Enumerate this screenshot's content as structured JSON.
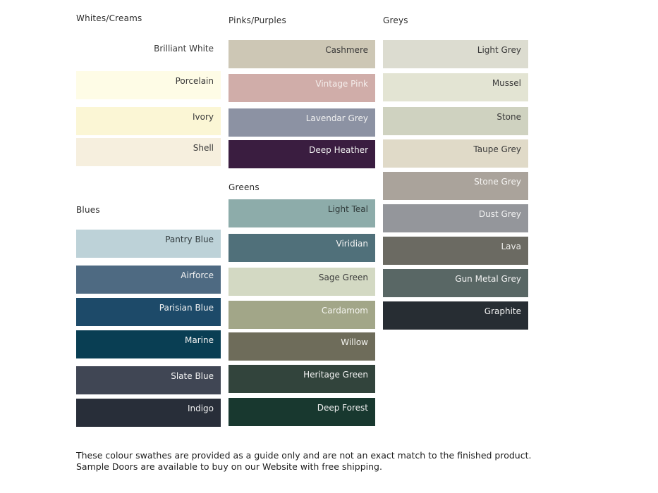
{
  "columns": [
    {
      "sections": [
        {
          "header": "Whites/Creams",
          "swatches": [
            {
              "label": "Brilliant White",
              "color": "#ffffff",
              "label_color": "#3a3a3a"
            },
            {
              "label": "Porcelain",
              "color": "#fefce6",
              "label_color": "#3a3a3a"
            },
            {
              "label": "Ivory",
              "color": "#fbf6d5",
              "label_color": "#3a3a3a"
            },
            {
              "label": "Shell",
              "color": "#f6efde",
              "label_color": "#3a3a3a"
            }
          ]
        },
        {
          "header": "Blues",
          "swatches": [
            {
              "label": "Pantry Blue",
              "color": "#bdd2d8",
              "label_color": "#333d40"
            },
            {
              "label": "Airforce",
              "color": "#4e6a82",
              "label_color": "#f2f2f2"
            },
            {
              "label": "Parisian Blue",
              "color": "#1d4a69",
              "label_color": "#f2f2f2"
            },
            {
              "label": "Marine",
              "color": "#093e53",
              "label_color": "#f2f2f2"
            },
            {
              "label": "Slate Blue",
              "color": "#404654",
              "label_color": "#f2f2f2"
            },
            {
              "label": "Indigo",
              "color": "#282e39",
              "label_color": "#f2f2f2"
            }
          ]
        }
      ]
    },
    {
      "sections": [
        {
          "header": "Pinks/Purples",
          "swatches": [
            {
              "label": "Cashmere",
              "color": "#cdc7b5",
              "label_color": "#3a3a3a"
            },
            {
              "label": "Vintage Pink",
              "color": "#d0ada9",
              "label_color": "#f5eeec"
            },
            {
              "label": "Lavendar Grey",
              "color": "#8c92a3",
              "label_color": "#f2f2f2"
            },
            {
              "label": "Deep Heather",
              "color": "#3a1d40",
              "label_color": "#f2f2f2"
            }
          ]
        },
        {
          "header": "Greens",
          "swatches": [
            {
              "label": "Light Teal",
              "color": "#8dacaa",
              "label_color": "#303a3a"
            },
            {
              "label": "Viridian",
              "color": "#50707a",
              "label_color": "#f2f2f2"
            },
            {
              "label": "Sage Green",
              "color": "#d3d9c3",
              "label_color": "#3a3a3a"
            },
            {
              "label": "Cardamom",
              "color": "#a2a688",
              "label_color": "#f5f5f0"
            },
            {
              "label": "Willow",
              "color": "#6e6c5a",
              "label_color": "#f2f2ee"
            },
            {
              "label": "Heritage Green",
              "color": "#32443c",
              "label_color": "#f2f2f2"
            },
            {
              "label": "Deep Forest",
              "color": "#18382f",
              "label_color": "#f2f2f2"
            }
          ]
        }
      ]
    },
    {
      "sections": [
        {
          "header": "Greys",
          "swatches": [
            {
              "label": "Light Grey",
              "color": "#dcdcd0",
              "label_color": "#3a3a3a"
            },
            {
              "label": "Mussel",
              "color": "#e3e4d3",
              "label_color": "#3a3a3a"
            },
            {
              "label": "Stone",
              "color": "#cfd2c0",
              "label_color": "#3a3a3a"
            },
            {
              "label": "Taupe Grey",
              "color": "#e0dac8",
              "label_color": "#3a3a3a"
            },
            {
              "label": "Stone Grey",
              "color": "#aaa39b",
              "label_color": "#f5f4f2"
            },
            {
              "label": "Dust Grey",
              "color": "#94969b",
              "label_color": "#f2f2f2"
            },
            {
              "label": "Lava",
              "color": "#6b6a62",
              "label_color": "#eeeeec"
            },
            {
              "label": "Gun Metal Grey",
              "color": "#596765",
              "label_color": "#f2f2f2"
            },
            {
              "label": "Graphite",
              "color": "#272d33",
              "label_color": "#f2f2f2"
            }
          ]
        }
      ]
    }
  ],
  "footer": {
    "text": "These colour swathes are provided as a guide only and are not an exact match to the finished product.  Sample Doors are available to buy on our Website with free shipping."
  }
}
